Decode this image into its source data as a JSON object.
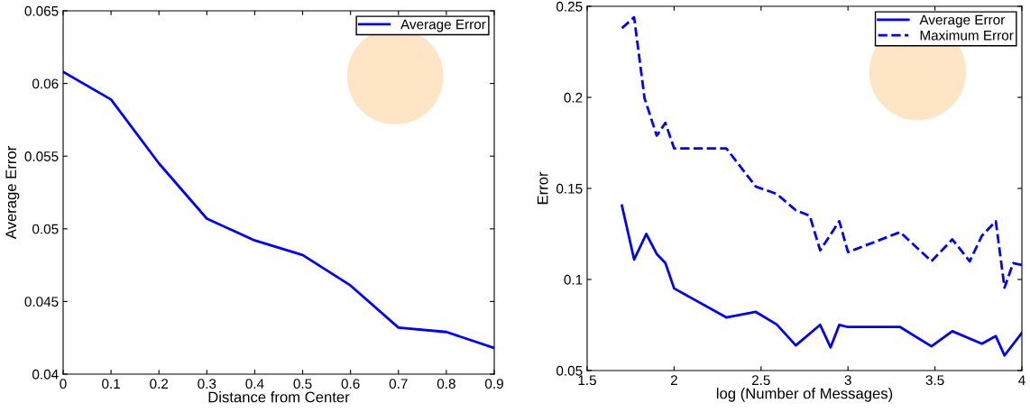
{
  "chart_data": [
    {
      "type": "line",
      "xlabel": "Distance from Center",
      "ylabel": "Average Error",
      "x": [
        0,
        0.1,
        0.2,
        0.3,
        0.4,
        0.5,
        0.6,
        0.7,
        0.8,
        0.9
      ],
      "series": [
        {
          "name": "Average Error",
          "color": "#0000ff",
          "line_style": "solid",
          "values": [
            0.0608,
            0.0589,
            0.0545,
            0.0507,
            0.0492,
            0.0482,
            0.0461,
            0.0432,
            0.0429,
            0.0418
          ]
        }
      ],
      "xlim": [
        0,
        0.9
      ],
      "xticks": [
        0,
        0.1,
        0.2,
        0.3,
        0.4,
        0.5,
        0.6,
        0.7,
        0.8,
        0.9
      ],
      "ylim": [
        0.04,
        0.065
      ],
      "yticks": [
        0.04,
        0.045,
        0.05,
        0.055,
        0.06,
        0.065
      ],
      "grid": false,
      "legend": "top right",
      "marker": "none"
    },
    {
      "type": "line",
      "xlabel": "log (Number of Messages)",
      "ylabel": "Error",
      "series": [
        {
          "name": "Average Error",
          "color": "#0000ff",
          "line_style": "solid",
          "x": [
            1.7,
            1.77,
            1.84,
            1.9,
            1.95,
            2.0,
            2.3,
            2.47,
            2.59,
            2.7,
            2.84,
            2.9,
            2.95,
            3.0,
            3.3,
            3.48,
            3.6,
            3.77,
            3.85,
            3.9,
            4.0
          ],
          "values": [
            0.1406,
            0.111,
            0.125,
            0.114,
            0.109,
            0.0951,
            0.0792,
            0.0822,
            0.0753,
            0.0638,
            0.0751,
            0.0627,
            0.0751,
            0.0739,
            0.0739,
            0.0633,
            0.0716,
            0.0647,
            0.0689,
            0.0583,
            0.0707
          ]
        },
        {
          "name": "Maximum Error",
          "color": "#0000ff",
          "line_style": "dashed",
          "x": [
            1.7,
            1.77,
            1.83,
            1.9,
            1.95,
            2.0,
            2.3,
            2.47,
            2.59,
            2.7,
            2.78,
            2.84,
            2.95,
            3.0,
            3.3,
            3.48,
            3.6,
            3.7,
            3.77,
            3.85,
            3.9,
            3.95,
            4.0
          ],
          "values": [
            0.238,
            0.244,
            0.1996,
            0.179,
            0.186,
            0.172,
            0.172,
            0.151,
            0.147,
            0.138,
            0.135,
            0.116,
            0.132,
            0.115,
            0.126,
            0.11,
            0.122,
            0.11,
            0.124,
            0.132,
            0.0955,
            0.109,
            0.108
          ]
        }
      ],
      "xlim": [
        1.5,
        4
      ],
      "xticks": [
        1.5,
        2,
        2.5,
        3,
        3.5,
        4
      ],
      "ylim": [
        0.05,
        0.25
      ],
      "yticks": [
        0.05,
        0.1,
        0.15,
        0.2,
        0.25
      ],
      "grid": false,
      "legend": "top right",
      "marker": "none"
    }
  ]
}
